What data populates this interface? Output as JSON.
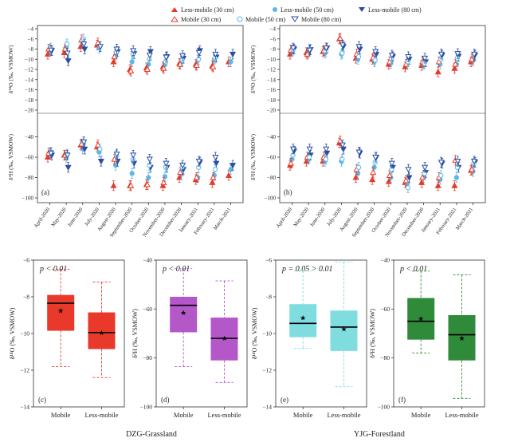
{
  "legend": {
    "items": [
      {
        "label": "Less-mobile (30 cm)",
        "color": "#e8392a",
        "marker": "triangle-up-filled"
      },
      {
        "label": "Less-mobile (50 cm)",
        "color": "#5cb8e6",
        "marker": "circle-filled"
      },
      {
        "label": "Less-mobile (80 cm)",
        "color": "#2a4fa0",
        "marker": "triangle-down-filled"
      },
      {
        "label": "Mobile (30 cm)",
        "color": "#e8392a",
        "marker": "triangle-up-open"
      },
      {
        "label": "Mobile (50 cm)",
        "color": "#5cb8e6",
        "marker": "circle-open"
      },
      {
        "label": "Mobile (80 cm)",
        "color": "#2a4fa0",
        "marker": "triangle-down-open"
      }
    ]
  },
  "months": [
    "April-2020",
    "May-2020",
    "June-2020",
    "July-2020",
    "August-2020",
    "September-2020",
    "October-2020",
    "November-2020",
    "December-2020",
    "January-2021",
    "February-2021",
    "March-2021"
  ],
  "site_labels": {
    "left": "DZG-Grassland",
    "right": "YJG-Forestland"
  },
  "chart_data": [
    {
      "type": "scatter",
      "panel": "a-top",
      "ylabel": "δ¹⁸O (‰, VSMOW)",
      "ylim": [
        -20,
        -4
      ],
      "yticks": [
        -4,
        -6,
        -8,
        -10,
        -12,
        -14,
        -16,
        -18,
        -20
      ],
      "series": [
        {
          "group": "Less-mobile (30 cm)",
          "values": [
            -9.0,
            -8.7,
            -7.5,
            -7.2,
            -10.5,
            -12.0,
            -11.7,
            -11.5,
            -10.8,
            -11.0,
            -11.3,
            -10.5
          ]
        },
        {
          "group": "Less-mobile (50 cm)",
          "values": [
            -8.3,
            -7.5,
            -6.8,
            -7.8,
            -9.2,
            -10.5,
            -11.0,
            -11.0,
            -10.5,
            -10.2,
            -10.0,
            -10.5
          ]
        },
        {
          "group": "Less-mobile (80 cm)",
          "values": [
            -8.3,
            -10.3,
            -8.0,
            null,
            -8.5,
            -8.9,
            -8.5,
            -9.5,
            -9.8,
            -8.3,
            -9.6,
            -9.0
          ]
        },
        {
          "group": "Mobile (30 cm)",
          "values": [
            -8.0,
            -8.0,
            -6.2,
            -6.8,
            -9.5,
            -12.3,
            -12.0,
            -11.8,
            -11.0,
            -11.2,
            -11.5,
            null
          ]
        },
        {
          "group": "Mobile (50 cm)",
          "values": [
            -7.8,
            -7.0,
            -6.0,
            -7.5,
            -8.7,
            -9.0,
            -10.0,
            -10.5,
            -10.2,
            -10.0,
            -9.8,
            null
          ]
        },
        {
          "group": "Mobile (80 cm)",
          "values": [
            -8.2,
            -8.8,
            -7.0,
            -7.5,
            -8.0,
            -8.3,
            -9.2,
            -9.6,
            -9.3,
            -8.7,
            -9.0,
            null
          ]
        }
      ]
    },
    {
      "type": "scatter",
      "panel": "a-bottom",
      "ylabel": "δ²H (‰, VSMOW)",
      "panel_label": "(a)",
      "ylim": [
        -100,
        -20
      ],
      "yticks": [
        -40,
        -60,
        -80,
        -100
      ],
      "series": [
        {
          "group": "Less-mobile (30 cm)",
          "values": [
            -60,
            -58,
            -48,
            -50,
            -88,
            -88,
            -87,
            -88,
            -80,
            -82,
            -85,
            -78
          ]
        },
        {
          "group": "Less-mobile (50 cm)",
          "values": [
            -56,
            -60,
            -52,
            -55,
            -68,
            -76,
            -80,
            -79,
            -77,
            -80,
            -78,
            -72
          ]
        },
        {
          "group": "Less-mobile (80 cm)",
          "values": [
            -58,
            -70,
            -52,
            -64,
            -64,
            -66,
            -70,
            -70,
            -72,
            -65,
            -66,
            -68
          ]
        },
        {
          "group": "Mobile (30 cm)",
          "values": [
            -56,
            -58,
            -47,
            -48,
            -62,
            -88,
            -87,
            -85,
            -75,
            -80,
            -80,
            null
          ]
        },
        {
          "group": "Mobile (50 cm)",
          "values": [
            -55,
            -57,
            -45,
            -52,
            -58,
            -62,
            -68,
            -70,
            -70,
            -70,
            -72,
            null
          ]
        },
        {
          "group": "Mobile (80 cm)",
          "values": [
            -56,
            -58,
            -45,
            null,
            -57,
            -58,
            -62,
            -66,
            -68,
            -64,
            -60,
            null
          ]
        }
      ]
    },
    {
      "type": "scatter",
      "panel": "b-top",
      "ylabel": "δ¹⁸O (‰, VSMOW)",
      "ylim": [
        -20,
        -4
      ],
      "yticks": [
        -4,
        -6,
        -8,
        -10,
        -12,
        -14,
        -16,
        -18,
        -20
      ],
      "series": [
        {
          "group": "Less-mobile (30 cm)",
          "values": [
            -9.0,
            -8.7,
            -8.5,
            -6.0,
            -9.8,
            -10.0,
            -11.0,
            -11.5,
            -11.2,
            -12.5,
            -11.8,
            -10.5
          ]
        },
        {
          "group": "Less-mobile (50 cm)",
          "values": [
            -8.5,
            -8.8,
            -8.8,
            -9.0,
            -10.0,
            -10.5,
            -10.8,
            -10.8,
            -11.0,
            -11.0,
            -11.0,
            -10.3
          ]
        },
        {
          "group": "Less-mobile (80 cm)",
          "values": [
            -8.0,
            -8.1,
            -7.8,
            -7.5,
            -8.0,
            -9.0,
            -9.5,
            -10.0,
            -10.5,
            -9.2,
            -9.4,
            -9.2
          ]
        },
        {
          "group": "Mobile (30 cm)",
          "values": [
            -8.2,
            -9.0,
            -8.3,
            -5.9,
            -9.0,
            -9.7,
            -10.5,
            -11.0,
            -10.5,
            -10.5,
            -11.0,
            -10.0
          ]
        },
        {
          "group": "Mobile (50 cm)",
          "values": [
            -8.2,
            -8.0,
            -8.5,
            -8.8,
            -9.5,
            -10.2,
            -10.0,
            -10.5,
            -10.8,
            -10.0,
            -9.8,
            null
          ]
        },
        {
          "group": "Mobile (80 cm)",
          "values": [
            -7.8,
            -8.2,
            -7.8,
            -7.2,
            -7.5,
            -8.5,
            -9.2,
            -9.5,
            -9.8,
            -9.0,
            -8.9,
            -9.0
          ]
        }
      ]
    },
    {
      "type": "scatter",
      "panel": "b-bottom",
      "ylabel": "δ²H (‰, VSMOW)",
      "panel_label": "(b)",
      "ylim": [
        -100,
        -20
      ],
      "yticks": [
        -40,
        -60,
        -80,
        -100
      ],
      "series": [
        {
          "group": "Less-mobile (30 cm)",
          "values": [
            -68,
            -64,
            -64,
            -46,
            -80,
            -82,
            -84,
            -85,
            -85,
            -88,
            -88,
            -73
          ]
        },
        {
          "group": "Less-mobile (50 cm)",
          "values": [
            -62,
            -62,
            -64,
            -64,
            -76,
            -70,
            -80,
            -86,
            -80,
            -82,
            -80,
            -74
          ]
        },
        {
          "group": "Less-mobile (80 cm)",
          "values": [
            -54,
            -58,
            -56,
            -52,
            -56,
            -60,
            -70,
            -80,
            -75,
            -66,
            -70,
            -65
          ]
        },
        {
          "group": "Mobile (30 cm)",
          "values": [
            -66,
            -60,
            -60,
            -44,
            -72,
            -75,
            -78,
            -83,
            -80,
            -80,
            -63,
            -72
          ]
        },
        {
          "group": "Mobile (50 cm)",
          "values": [
            -58,
            -60,
            -62,
            -62,
            -70,
            -65,
            -72,
            -90,
            -76,
            -78,
            -70,
            -66
          ]
        },
        {
          "group": "Mobile (80 cm)",
          "values": [
            -52,
            -52,
            -52,
            -48,
            -55,
            -60,
            -66,
            -72,
            -70,
            -65,
            -64,
            -64
          ]
        }
      ]
    },
    {
      "type": "box",
      "panel_label": "(c)",
      "annotation": "p < 0.01",
      "ylabel": "δ¹⁸O (‰, VSMOW)",
      "ylim": [
        -14,
        -6
      ],
      "yticks": [
        -6,
        -8,
        -10,
        -12,
        -14
      ],
      "categories": [
        "Mobile",
        "Less-mobile"
      ],
      "color": "#e8392a",
      "boxes": [
        {
          "min": -11.8,
          "q1": -9.85,
          "median": -8.35,
          "q3": -7.9,
          "max": -6.5,
          "mean": -8.75
        },
        {
          "min": -12.4,
          "q1": -10.85,
          "median": -9.95,
          "q3": -8.85,
          "max": -7.2,
          "mean": -9.95
        }
      ]
    },
    {
      "type": "box",
      "panel_label": "(d)",
      "annotation": "p < 0.01",
      "ylabel": "δ²H (‰, VSMOW)",
      "ylim": [
        -100,
        -40
      ],
      "yticks": [
        -40,
        -60,
        -80,
        -100
      ],
      "categories": [
        "Mobile",
        "Less-mobile"
      ],
      "color": "#b457c8",
      "boxes": [
        {
          "min": -83.5,
          "q1": -69.5,
          "median": -58.5,
          "q3": -55.0,
          "max": -43.5,
          "mean": -61.5
        },
        {
          "min": -90.0,
          "q1": -81.0,
          "median": -72.0,
          "q3": -63.5,
          "max": -48.5,
          "mean": -72.0
        }
      ]
    },
    {
      "type": "box",
      "panel_label": "(e)",
      "annotation": "p = 0.05 > 0.01",
      "ylabel": "δ¹⁸O (‰, VSMOW)",
      "ylim": [
        -14,
        -6
      ],
      "yticks": [
        -6,
        -8,
        -10,
        -12,
        -14
      ],
      "categories": [
        "Mobile",
        "Less-mobile"
      ],
      "color": "#7fdde0",
      "boxes": [
        {
          "min": -10.8,
          "q1": -10.2,
          "median": -9.45,
          "q3": -8.4,
          "max": -6.6,
          "mean": -9.15
        },
        {
          "min": -12.9,
          "q1": -10.95,
          "median": -9.65,
          "q3": -8.75,
          "max": -6.1,
          "mean": -9.75
        }
      ]
    },
    {
      "type": "box",
      "panel_label": "(f)",
      "annotation": "p < 0.01",
      "ylabel": "δ²H (‰, VSMOW)",
      "ylim": [
        -100,
        -40
      ],
      "yticks": [
        -40,
        -60,
        -80,
        -100
      ],
      "categories": [
        "Mobile",
        "Less-mobile"
      ],
      "color": "#2f8a3a",
      "boxes": [
        {
          "min": -78.0,
          "q1": -72.5,
          "median": -65.0,
          "q3": -55.5,
          "max": -44.5,
          "mean": -64.0
        },
        {
          "min": -96.5,
          "q1": -81.0,
          "median": -70.5,
          "q3": -62.5,
          "max": -46.0,
          "mean": -72.0
        }
      ]
    }
  ]
}
